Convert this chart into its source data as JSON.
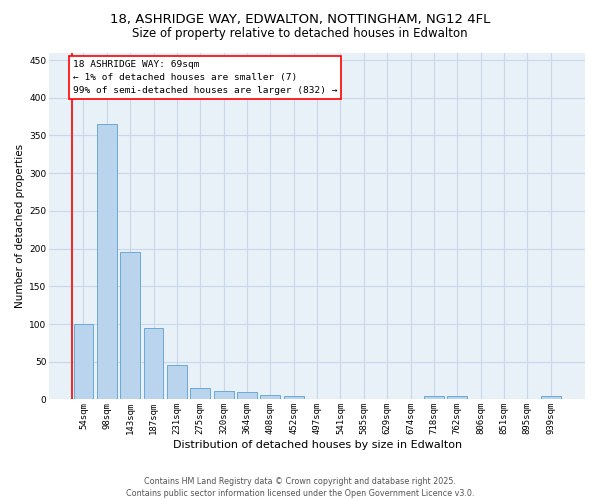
{
  "title": "18, ASHRIDGE WAY, EDWALTON, NOTTINGHAM, NG12 4FL",
  "subtitle": "Size of property relative to detached houses in Edwalton",
  "xlabel": "Distribution of detached houses by size in Edwalton",
  "ylabel": "Number of detached properties",
  "bar_color": "#bad4ed",
  "bar_edge_color": "#6aaad4",
  "grid_color": "#c8d8ea",
  "bg_color": "#e8f0f8",
  "categories": [
    "54sqm",
    "98sqm",
    "143sqm",
    "187sqm",
    "231sqm",
    "275sqm",
    "320sqm",
    "364sqm",
    "408sqm",
    "452sqm",
    "497sqm",
    "541sqm",
    "585sqm",
    "629sqm",
    "674sqm",
    "718sqm",
    "762sqm",
    "806sqm",
    "851sqm",
    "895sqm",
    "939sqm"
  ],
  "values": [
    100,
    365,
    195,
    95,
    46,
    15,
    11,
    10,
    6,
    5,
    0,
    0,
    0,
    0,
    0,
    5,
    4,
    0,
    0,
    0,
    4
  ],
  "annotation_text": "18 ASHRIDGE WAY: 69sqm\n← 1% of detached houses are smaller (7)\n99% of semi-detached houses are larger (832) →",
  "annotation_box_color": "white",
  "annotation_border_color": "red",
  "marker_color": "red",
  "ylim": [
    0,
    460
  ],
  "yticks": [
    0,
    50,
    100,
    150,
    200,
    250,
    300,
    350,
    400,
    450
  ],
  "footer": "Contains HM Land Registry data © Crown copyright and database right 2025.\nContains public sector information licensed under the Open Government Licence v3.0.",
  "title_fontsize": 9.5,
  "subtitle_fontsize": 8.5,
  "xlabel_fontsize": 8,
  "ylabel_fontsize": 7.5,
  "tick_fontsize": 6.5,
  "annotation_fontsize": 6.8,
  "footer_fontsize": 5.8
}
